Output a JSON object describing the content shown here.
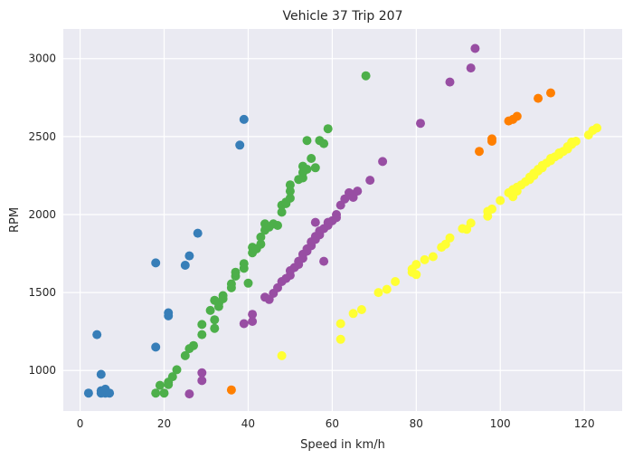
{
  "chart_data": {
    "type": "scatter",
    "title": "Vehicle 37 Trip 207",
    "xlabel": "Speed in km/h",
    "ylabel": "RPM",
    "xlim": [
      -4,
      129
    ],
    "ylim": [
      740,
      3190
    ],
    "xticks": [
      0,
      20,
      40,
      60,
      80,
      100,
      120
    ],
    "yticks": [
      1000,
      1500,
      2000,
      2500,
      3000
    ],
    "grid": true,
    "legend": false,
    "background": "#eaeaf2",
    "series": [
      {
        "color": "#377eb8",
        "points": [
          [
            2,
            855
          ],
          [
            4,
            1230
          ],
          [
            5,
            975
          ],
          [
            5,
            870
          ],
          [
            5,
            855
          ],
          [
            6,
            880
          ],
          [
            6,
            855
          ],
          [
            7,
            855
          ],
          [
            18,
            1690
          ],
          [
            18,
            1150
          ],
          [
            21,
            1370
          ],
          [
            21,
            1350
          ],
          [
            25,
            1675
          ],
          [
            26,
            1735
          ],
          [
            28,
            1880
          ],
          [
            38,
            2445
          ],
          [
            39,
            2610
          ]
        ]
      },
      {
        "color": "#4daf4a",
        "points": [
          [
            18,
            855
          ],
          [
            19,
            905
          ],
          [
            20,
            855
          ],
          [
            21,
            910
          ],
          [
            21,
            925
          ],
          [
            22,
            960
          ],
          [
            23,
            1005
          ],
          [
            25,
            1095
          ],
          [
            26,
            1140
          ],
          [
            27,
            1160
          ],
          [
            29,
            1230
          ],
          [
            29,
            1295
          ],
          [
            31,
            1385
          ],
          [
            32,
            1325
          ],
          [
            32,
            1270
          ],
          [
            32,
            1450
          ],
          [
            33,
            1410
          ],
          [
            33,
            1430
          ],
          [
            34,
            1480
          ],
          [
            34,
            1460
          ],
          [
            36,
            1530
          ],
          [
            36,
            1555
          ],
          [
            37,
            1605
          ],
          [
            37,
            1630
          ],
          [
            39,
            1655
          ],
          [
            39,
            1685
          ],
          [
            40,
            1560
          ],
          [
            41,
            1755
          ],
          [
            41,
            1790
          ],
          [
            42,
            1780
          ],
          [
            43,
            1810
          ],
          [
            43,
            1855
          ],
          [
            44,
            1900
          ],
          [
            44,
            1940
          ],
          [
            45,
            1920
          ],
          [
            46,
            1940
          ],
          [
            47,
            1930
          ],
          [
            48,
            2015
          ],
          [
            48,
            2060
          ],
          [
            49,
            2070
          ],
          [
            49,
            2080
          ],
          [
            50,
            2105
          ],
          [
            50,
            2150
          ],
          [
            50,
            2190
          ],
          [
            52,
            2225
          ],
          [
            53,
            2235
          ],
          [
            53,
            2270
          ],
          [
            53,
            2310
          ],
          [
            54,
            2290
          ],
          [
            54,
            2475
          ],
          [
            55,
            2360
          ],
          [
            56,
            2300
          ],
          [
            57,
            2475
          ],
          [
            58,
            2455
          ],
          [
            59,
            2550
          ],
          [
            68,
            2890
          ]
        ]
      },
      {
        "color": "#984ea3",
        "points": [
          [
            26,
            850
          ],
          [
            29,
            935
          ],
          [
            29,
            985
          ],
          [
            39,
            1300
          ],
          [
            41,
            1360
          ],
          [
            41,
            1315
          ],
          [
            44,
            1470
          ],
          [
            45,
            1455
          ],
          [
            46,
            1495
          ],
          [
            47,
            1530
          ],
          [
            48,
            1570
          ],
          [
            49,
            1590
          ],
          [
            50,
            1610
          ],
          [
            50,
            1640
          ],
          [
            51,
            1660
          ],
          [
            52,
            1680
          ],
          [
            52,
            1700
          ],
          [
            53,
            1720
          ],
          [
            53,
            1745
          ],
          [
            54,
            1765
          ],
          [
            54,
            1780
          ],
          [
            55,
            1800
          ],
          [
            55,
            1825
          ],
          [
            56,
            1840
          ],
          [
            56,
            1860
          ],
          [
            56,
            1950
          ],
          [
            57,
            1870
          ],
          [
            57,
            1895
          ],
          [
            58,
            1910
          ],
          [
            58,
            1700
          ],
          [
            59,
            1930
          ],
          [
            59,
            1950
          ],
          [
            60,
            1960
          ],
          [
            61,
            1980
          ],
          [
            61,
            2000
          ],
          [
            62,
            2060
          ],
          [
            63,
            2100
          ],
          [
            64,
            2140
          ],
          [
            65,
            2130
          ],
          [
            65,
            2110
          ],
          [
            66,
            2150
          ],
          [
            69,
            2220
          ],
          [
            72,
            2340
          ],
          [
            81,
            2585
          ],
          [
            88,
            2850
          ],
          [
            93,
            2940
          ],
          [
            94,
            3065
          ]
        ]
      },
      {
        "color": "#ff7f00",
        "points": [
          [
            36,
            875
          ],
          [
            95,
            2405
          ],
          [
            98,
            2470
          ],
          [
            98,
            2485
          ],
          [
            102,
            2600
          ],
          [
            103,
            2610
          ],
          [
            104,
            2630
          ],
          [
            109,
            2745
          ],
          [
            112,
            2780
          ]
        ]
      },
      {
        "color": "#ffff33",
        "points": [
          [
            48,
            1095
          ],
          [
            62,
            1200
          ],
          [
            62,
            1300
          ],
          [
            65,
            1365
          ],
          [
            67,
            1390
          ],
          [
            71,
            1500
          ],
          [
            73,
            1520
          ],
          [
            75,
            1570
          ],
          [
            79,
            1630
          ],
          [
            79,
            1650
          ],
          [
            80,
            1615
          ],
          [
            80,
            1680
          ],
          [
            82,
            1710
          ],
          [
            84,
            1730
          ],
          [
            86,
            1790
          ],
          [
            87,
            1810
          ],
          [
            88,
            1850
          ],
          [
            91,
            1910
          ],
          [
            92,
            1905
          ],
          [
            93,
            1945
          ],
          [
            97,
            1990
          ],
          [
            97,
            2020
          ],
          [
            98,
            2035
          ],
          [
            100,
            2090
          ],
          [
            102,
            2140
          ],
          [
            103,
            2115
          ],
          [
            103,
            2160
          ],
          [
            104,
            2150
          ],
          [
            104,
            2175
          ],
          [
            105,
            2190
          ],
          [
            106,
            2210
          ],
          [
            107,
            2225
          ],
          [
            107,
            2240
          ],
          [
            108,
            2250
          ],
          [
            108,
            2265
          ],
          [
            109,
            2280
          ],
          [
            109,
            2290
          ],
          [
            110,
            2300
          ],
          [
            110,
            2315
          ],
          [
            111,
            2330
          ],
          [
            112,
            2345
          ],
          [
            112,
            2360
          ],
          [
            113,
            2370
          ],
          [
            114,
            2385
          ],
          [
            114,
            2395
          ],
          [
            115,
            2405
          ],
          [
            116,
            2420
          ],
          [
            116,
            2435
          ],
          [
            117,
            2450
          ],
          [
            117,
            2465
          ],
          [
            118,
            2470
          ],
          [
            121,
            2510
          ],
          [
            122,
            2540
          ],
          [
            123,
            2555
          ]
        ]
      }
    ]
  }
}
